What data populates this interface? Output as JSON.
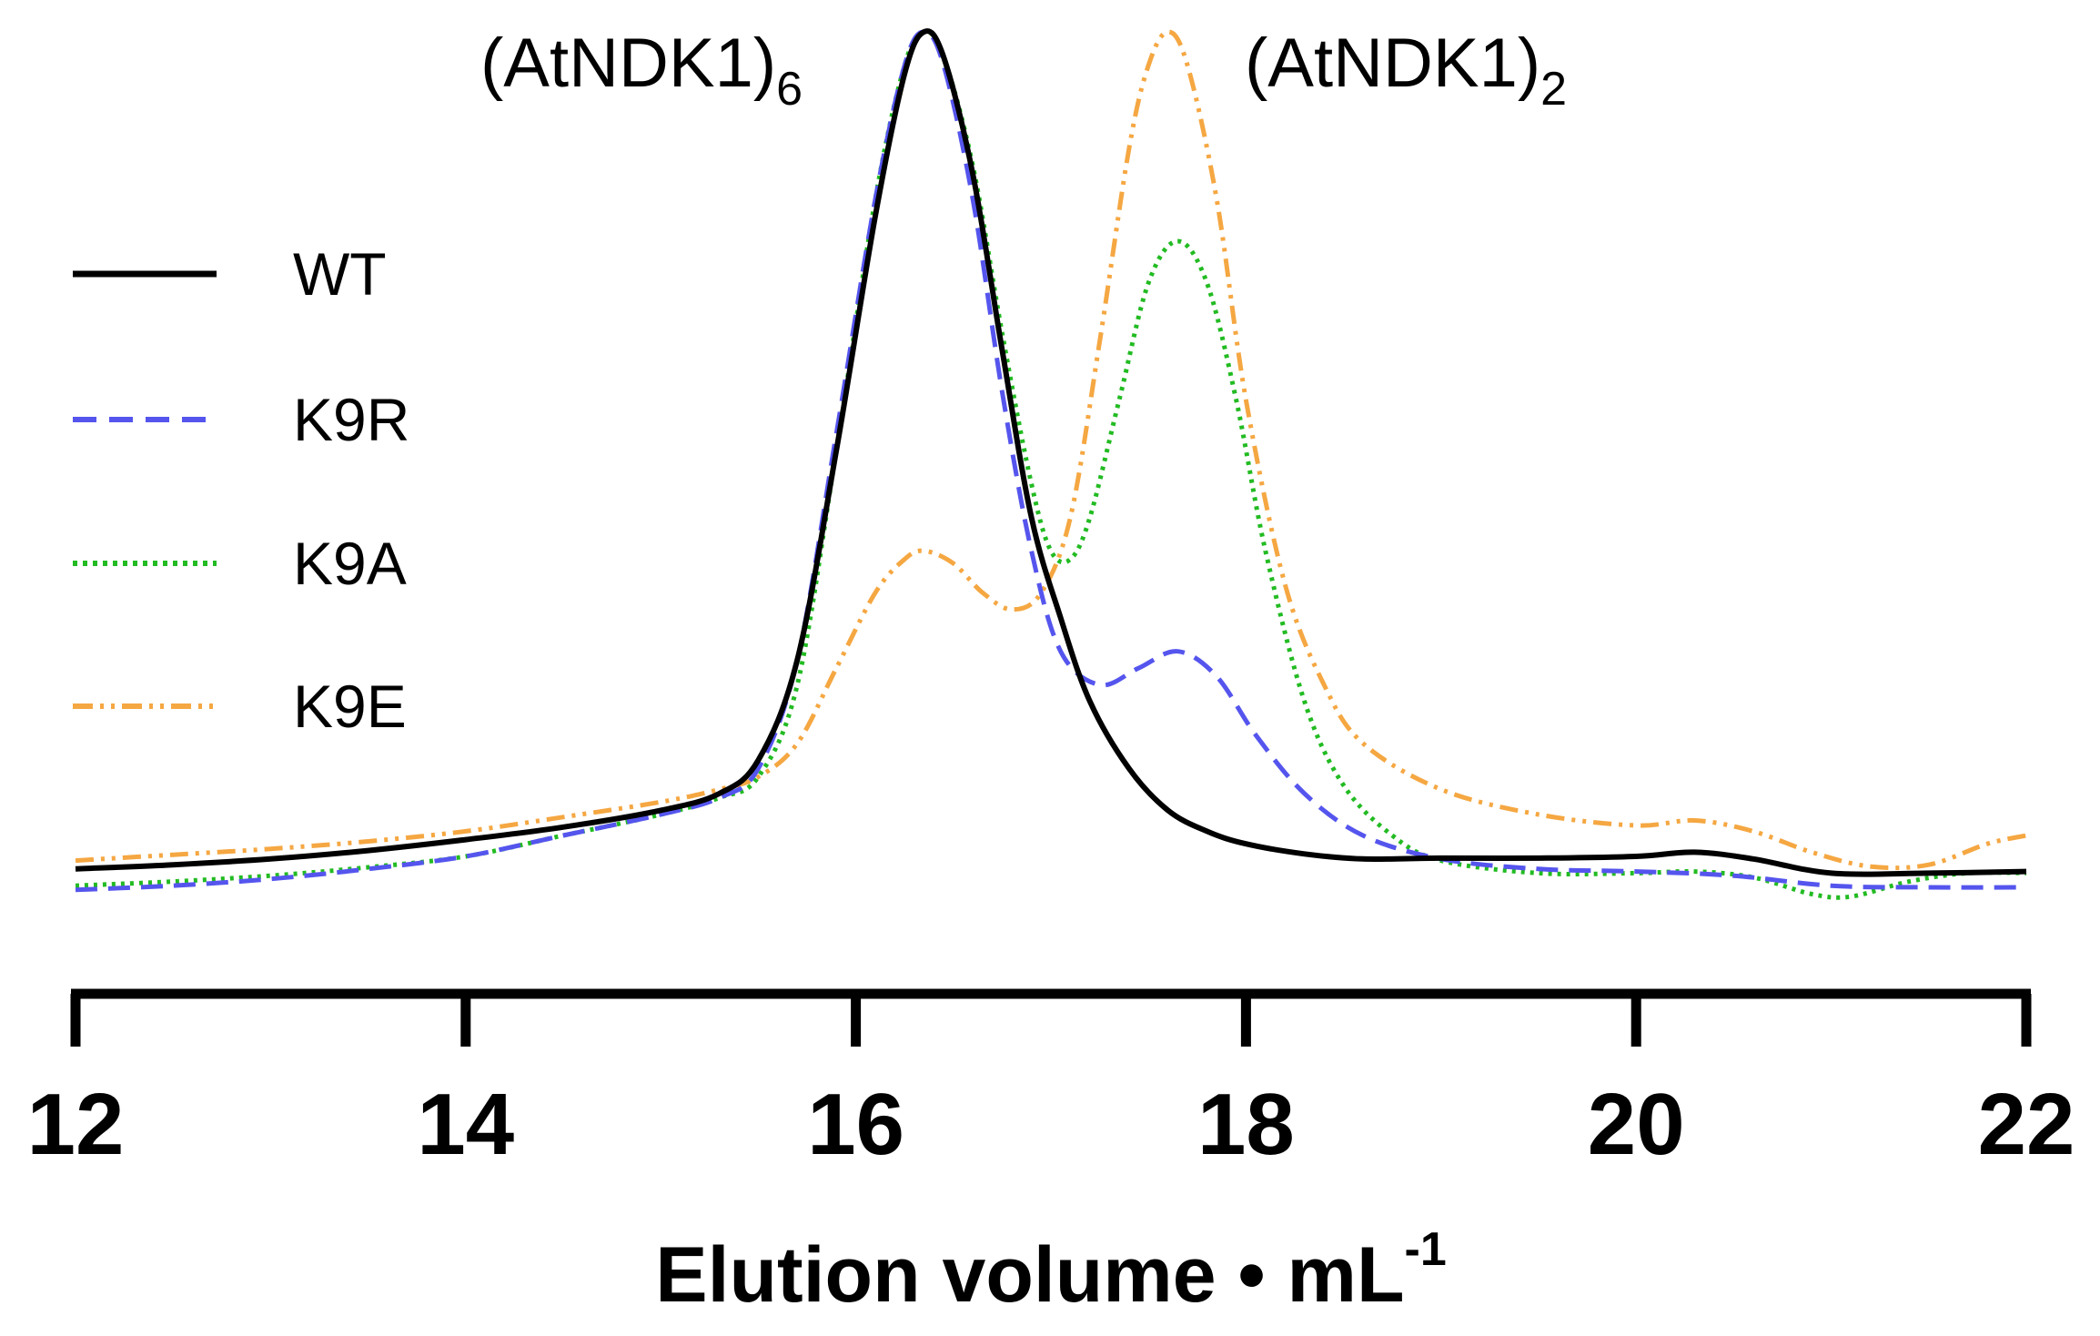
{
  "chart_data": {
    "type": "line",
    "title": "",
    "xlabel": "Elution volume • mL",
    "xlabel_superscript": "-1",
    "ylabel": "",
    "xlim": [
      12,
      22
    ],
    "ylim": [
      -0.06,
      1.0
    ],
    "x_ticks": [
      12,
      14,
      16,
      18,
      20,
      22
    ],
    "x_tick_labels": [
      "12",
      "14",
      "16",
      "18",
      "20",
      "22"
    ],
    "grid": false,
    "legend": {
      "position": "left",
      "entries": [
        "WT",
        "K9R",
        "K9A",
        "K9E"
      ]
    },
    "annotations": [
      {
        "text": "(AtNDK1)",
        "subscript": "6",
        "x": 16.35
      },
      {
        "text": "(AtNDK1)",
        "subscript": "2",
        "x": 17.6
      }
    ],
    "series": [
      {
        "name": "WT",
        "color": "#000000",
        "style": "solid",
        "points": [
          [
            12.0,
            0.0
          ],
          [
            12.5,
            0.005
          ],
          [
            13.0,
            0.012
          ],
          [
            13.5,
            0.022
          ],
          [
            14.0,
            0.035
          ],
          [
            14.5,
            0.05
          ],
          [
            15.0,
            0.07
          ],
          [
            15.3,
            0.09
          ],
          [
            15.5,
            0.13
          ],
          [
            15.7,
            0.25
          ],
          [
            15.9,
            0.5
          ],
          [
            16.1,
            0.78
          ],
          [
            16.25,
            0.95
          ],
          [
            16.35,
            1.0
          ],
          [
            16.45,
            0.97
          ],
          [
            16.6,
            0.83
          ],
          [
            16.75,
            0.62
          ],
          [
            16.9,
            0.42
          ],
          [
            17.05,
            0.3
          ],
          [
            17.2,
            0.2
          ],
          [
            17.4,
            0.12
          ],
          [
            17.6,
            0.07
          ],
          [
            17.8,
            0.045
          ],
          [
            18.0,
            0.03
          ],
          [
            18.3,
            0.018
          ],
          [
            18.6,
            0.012
          ],
          [
            19.0,
            0.013
          ],
          [
            19.5,
            0.013
          ],
          [
            20.0,
            0.015
          ],
          [
            20.3,
            0.02
          ],
          [
            20.6,
            0.012
          ],
          [
            21.0,
            -0.005
          ],
          [
            21.5,
            -0.005
          ],
          [
            22.0,
            -0.003
          ]
        ]
      },
      {
        "name": "K9R",
        "color": "#5555ee",
        "style": "dashed",
        "points": [
          [
            12.0,
            -0.025
          ],
          [
            12.5,
            -0.02
          ],
          [
            13.0,
            -0.012
          ],
          [
            13.5,
            0.0
          ],
          [
            14.0,
            0.015
          ],
          [
            14.5,
            0.04
          ],
          [
            15.0,
            0.065
          ],
          [
            15.3,
            0.085
          ],
          [
            15.5,
            0.12
          ],
          [
            15.7,
            0.25
          ],
          [
            15.9,
            0.52
          ],
          [
            16.1,
            0.8
          ],
          [
            16.25,
            0.96
          ],
          [
            16.35,
            1.0
          ],
          [
            16.45,
            0.96
          ],
          [
            16.6,
            0.8
          ],
          [
            16.75,
            0.57
          ],
          [
            16.9,
            0.38
          ],
          [
            17.05,
            0.26
          ],
          [
            17.25,
            0.22
          ],
          [
            17.45,
            0.24
          ],
          [
            17.65,
            0.26
          ],
          [
            17.85,
            0.23
          ],
          [
            18.05,
            0.16
          ],
          [
            18.3,
            0.09
          ],
          [
            18.6,
            0.04
          ],
          [
            19.0,
            0.012
          ],
          [
            19.5,
            0.0
          ],
          [
            20.0,
            -0.003
          ],
          [
            20.5,
            -0.008
          ],
          [
            21.0,
            -0.02
          ],
          [
            21.5,
            -0.022
          ],
          [
            22.0,
            -0.022
          ]
        ]
      },
      {
        "name": "K9A",
        "color": "#22bb22",
        "style": "dotted",
        "points": [
          [
            12.0,
            -0.02
          ],
          [
            12.5,
            -0.015
          ],
          [
            13.0,
            -0.008
          ],
          [
            13.5,
            0.002
          ],
          [
            14.0,
            0.015
          ],
          [
            14.5,
            0.04
          ],
          [
            15.0,
            0.065
          ],
          [
            15.3,
            0.085
          ],
          [
            15.5,
            0.11
          ],
          [
            15.7,
            0.22
          ],
          [
            15.9,
            0.5
          ],
          [
            16.1,
            0.8
          ],
          [
            16.25,
            0.96
          ],
          [
            16.35,
            1.0
          ],
          [
            16.45,
            0.97
          ],
          [
            16.6,
            0.84
          ],
          [
            16.75,
            0.64
          ],
          [
            16.9,
            0.46
          ],
          [
            17.0,
            0.38
          ],
          [
            17.1,
            0.37
          ],
          [
            17.2,
            0.42
          ],
          [
            17.35,
            0.56
          ],
          [
            17.5,
            0.7
          ],
          [
            17.65,
            0.75
          ],
          [
            17.8,
            0.7
          ],
          [
            17.95,
            0.56
          ],
          [
            18.1,
            0.38
          ],
          [
            18.3,
            0.2
          ],
          [
            18.5,
            0.1
          ],
          [
            18.75,
            0.04
          ],
          [
            19.0,
            0.01
          ],
          [
            19.5,
            -0.005
          ],
          [
            20.0,
            -0.005
          ],
          [
            20.3,
            -0.003
          ],
          [
            20.6,
            -0.01
          ],
          [
            20.9,
            -0.03
          ],
          [
            21.1,
            -0.033
          ],
          [
            21.4,
            -0.015
          ],
          [
            21.7,
            -0.005
          ],
          [
            22.0,
            -0.005
          ]
        ]
      },
      {
        "name": "K9E",
        "color": "#f5a742",
        "style": "dashdotdot",
        "points": [
          [
            12.0,
            0.01
          ],
          [
            12.5,
            0.017
          ],
          [
            13.0,
            0.024
          ],
          [
            13.5,
            0.033
          ],
          [
            14.0,
            0.045
          ],
          [
            14.5,
            0.062
          ],
          [
            15.0,
            0.08
          ],
          [
            15.3,
            0.095
          ],
          [
            15.5,
            0.11
          ],
          [
            15.7,
            0.15
          ],
          [
            15.9,
            0.24
          ],
          [
            16.1,
            0.33
          ],
          [
            16.25,
            0.37
          ],
          [
            16.35,
            0.38
          ],
          [
            16.5,
            0.365
          ],
          [
            16.65,
            0.33
          ],
          [
            16.8,
            0.31
          ],
          [
            16.95,
            0.33
          ],
          [
            17.1,
            0.42
          ],
          [
            17.25,
            0.63
          ],
          [
            17.4,
            0.86
          ],
          [
            17.5,
            0.96
          ],
          [
            17.6,
            1.0
          ],
          [
            17.7,
            0.96
          ],
          [
            17.85,
            0.8
          ],
          [
            18.0,
            0.56
          ],
          [
            18.2,
            0.34
          ],
          [
            18.4,
            0.22
          ],
          [
            18.6,
            0.15
          ],
          [
            19.0,
            0.095
          ],
          [
            19.5,
            0.065
          ],
          [
            20.0,
            0.052
          ],
          [
            20.3,
            0.058
          ],
          [
            20.6,
            0.045
          ],
          [
            20.9,
            0.02
          ],
          [
            21.2,
            0.003
          ],
          [
            21.5,
            0.005
          ],
          [
            21.8,
            0.03
          ],
          [
            22.0,
            0.04
          ]
        ]
      }
    ]
  }
}
